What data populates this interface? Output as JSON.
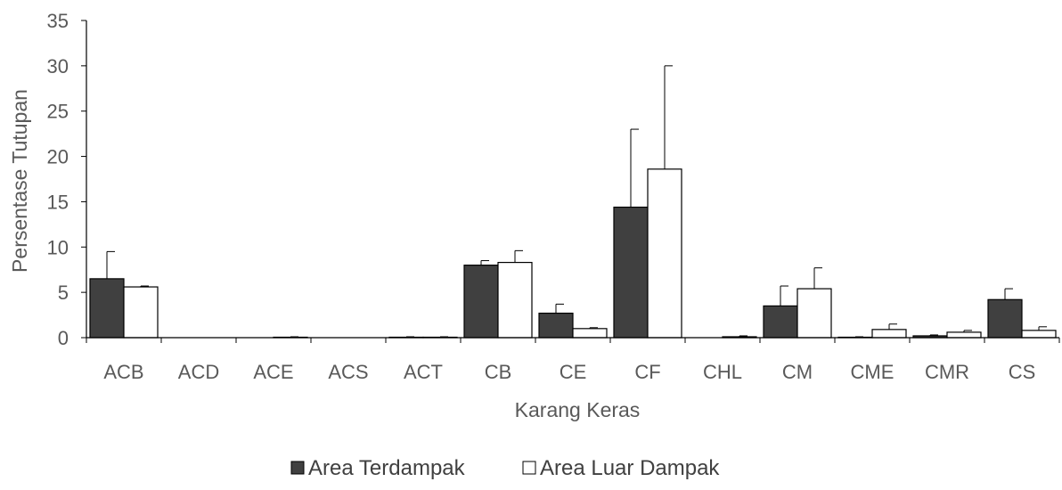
{
  "chart_data": {
    "type": "bar",
    "title": "",
    "xlabel": "Karang Keras",
    "ylabel": "Persentase Tutupan",
    "ylim": [
      0,
      35
    ],
    "yticks": [
      0,
      5,
      10,
      15,
      20,
      25,
      30,
      35
    ],
    "grid": false,
    "legend_position": "bottom",
    "categories": [
      "ACB",
      "ACD",
      "ACE",
      "ACS",
      "ACT",
      "CB",
      "CE",
      "CF",
      "CHL",
      "CM",
      "CME",
      "CMR",
      "CS"
    ],
    "series": [
      {
        "name": "Area Terdampak",
        "color": "#404040",
        "values": [
          6.5,
          0,
          0,
          0,
          0.05,
          8.0,
          2.7,
          14.4,
          0,
          3.5,
          0.05,
          0.2,
          4.2
        ],
        "errors": [
          3.0,
          0,
          0,
          0,
          0.05,
          0.5,
          1.0,
          8.6,
          0,
          2.2,
          0.05,
          0.1,
          1.2
        ]
      },
      {
        "name": "Area Luar Dampak",
        "color": "#ffffff",
        "values": [
          5.6,
          0,
          0.05,
          0,
          0.05,
          8.3,
          1.0,
          18.6,
          0.1,
          5.4,
          0.9,
          0.6,
          0.8
        ],
        "errors": [
          0.1,
          0,
          0.05,
          0,
          0.05,
          1.3,
          0.1,
          11.4,
          0.1,
          2.3,
          0.6,
          0.2,
          0.4
        ]
      }
    ]
  }
}
